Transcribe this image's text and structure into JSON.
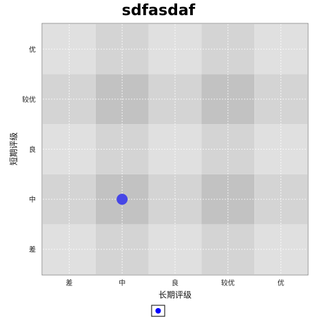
{
  "chart_data": {
    "type": "scatter",
    "title": "sdfasdaf",
    "xlabel": "长期评级",
    "ylabel": "短期评级",
    "x_categories": [
      "差",
      "中",
      "良",
      "较优",
      "优"
    ],
    "y_categories": [
      "差",
      "中",
      "良",
      "较优",
      "优"
    ],
    "grid": true,
    "background_cells": {
      "x_band_shade": [
        0,
        1,
        0,
        1,
        0
      ],
      "y_band_shade": [
        0,
        1,
        0,
        1,
        0
      ],
      "colors": [
        "#e0e0e0",
        "#d4d4d4",
        "#c2c2c2"
      ]
    },
    "series": [
      {
        "points": [
          {
            "x": "中",
            "y": "中"
          }
        ],
        "color": "#4646e6"
      }
    ],
    "legend": {
      "placement": "bottom-center",
      "marker_color": "#0000ff"
    }
  }
}
